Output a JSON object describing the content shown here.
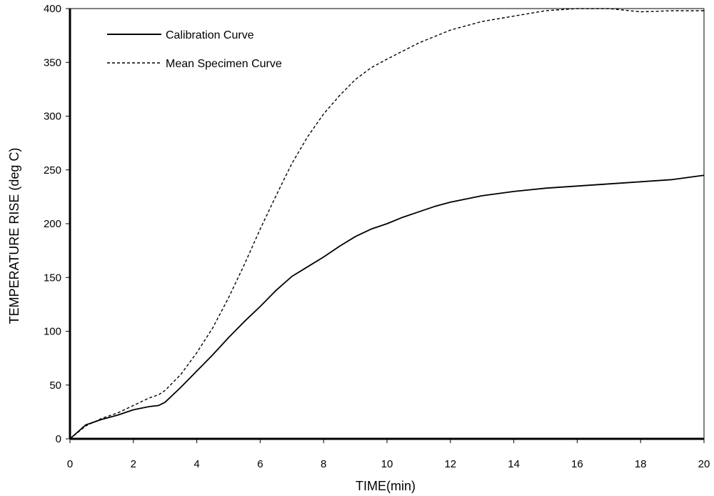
{
  "chart_data": {
    "type": "line",
    "title": "",
    "xlabel": "TIME(min)",
    "ylabel": "TEMPERATURE RISE (deg C)",
    "xlim": [
      0,
      20
    ],
    "ylim": [
      0,
      400
    ],
    "x_ticks": [
      "0",
      "2",
      "4",
      "6",
      "8",
      "10",
      "12",
      "14",
      "16",
      "18",
      "20"
    ],
    "y_ticks": [
      "0",
      "50",
      "100",
      "150",
      "200",
      "250",
      "300",
      "350",
      "400"
    ],
    "grid": false,
    "legend_position": "top-left",
    "series": [
      {
        "name": "Calibration Curve",
        "style": "solid",
        "color": "#000000",
        "points": [
          [
            0,
            0
          ],
          [
            0.5,
            13
          ],
          [
            1,
            18
          ],
          [
            1.5,
            22
          ],
          [
            2,
            27
          ],
          [
            2.5,
            30
          ],
          [
            2.8,
            31
          ],
          [
            3,
            34
          ],
          [
            3.5,
            48
          ],
          [
            4,
            63
          ],
          [
            4.5,
            78
          ],
          [
            5,
            94
          ],
          [
            5.5,
            109
          ],
          [
            6,
            123
          ],
          [
            6.5,
            138
          ],
          [
            7,
            151
          ],
          [
            7.5,
            160
          ],
          [
            8,
            169
          ],
          [
            8.5,
            179
          ],
          [
            9,
            188
          ],
          [
            9.5,
            195
          ],
          [
            10,
            200
          ],
          [
            10.5,
            206
          ],
          [
            11,
            211
          ],
          [
            11.5,
            216
          ],
          [
            12,
            220
          ],
          [
            12.5,
            223
          ],
          [
            13,
            226
          ],
          [
            14,
            230
          ],
          [
            15,
            233
          ],
          [
            16,
            235
          ],
          [
            17,
            237
          ],
          [
            18,
            239
          ],
          [
            19,
            241
          ],
          [
            20,
            245
          ]
        ]
      },
      {
        "name": "Mean Specimen Curve",
        "style": "dashed",
        "color": "#000000",
        "points": [
          [
            0,
            0
          ],
          [
            0.5,
            12
          ],
          [
            1,
            19
          ],
          [
            1.5,
            24
          ],
          [
            2,
            31
          ],
          [
            2.5,
            38
          ],
          [
            2.8,
            41
          ],
          [
            3,
            45
          ],
          [
            3.5,
            60
          ],
          [
            4,
            80
          ],
          [
            4.5,
            103
          ],
          [
            5,
            131
          ],
          [
            5.5,
            162
          ],
          [
            6,
            195
          ],
          [
            6.5,
            226
          ],
          [
            7,
            256
          ],
          [
            7.5,
            281
          ],
          [
            8,
            302
          ],
          [
            8.5,
            319
          ],
          [
            9,
            334
          ],
          [
            9.5,
            345
          ],
          [
            10,
            353
          ],
          [
            11,
            368
          ],
          [
            12,
            380
          ],
          [
            13,
            388
          ],
          [
            14,
            393
          ],
          [
            15,
            398
          ],
          [
            16,
            400
          ],
          [
            17,
            400
          ],
          [
            18,
            397
          ],
          [
            19,
            398
          ],
          [
            20,
            398
          ]
        ]
      }
    ]
  }
}
